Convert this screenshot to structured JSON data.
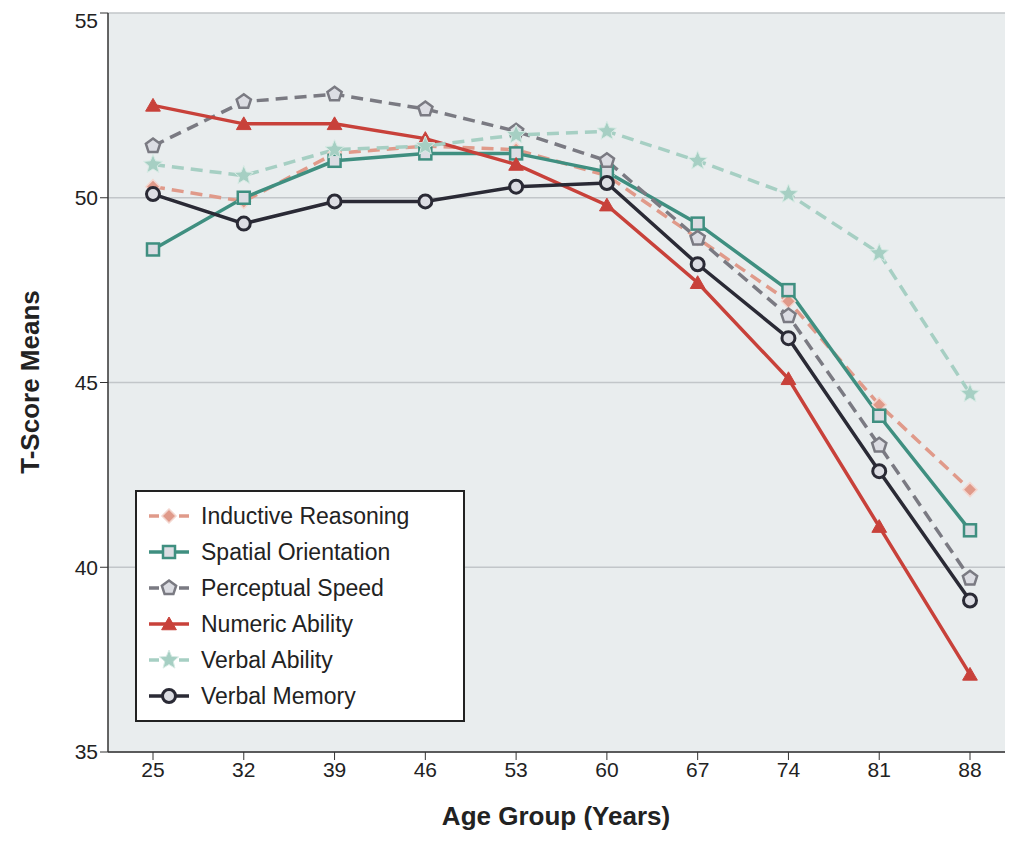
{
  "chart_data": {
    "type": "line",
    "x_label": "Age Group (Years)",
    "y_label": "T-Score Means",
    "categories": [
      25,
      32,
      39,
      46,
      53,
      60,
      67,
      74,
      81,
      88
    ],
    "ylim": [
      35,
      55
    ],
    "yticks": [
      35,
      40,
      45,
      50,
      55
    ],
    "grid": true,
    "legend": "lower left",
    "series": [
      {
        "name": "Inductive Reasoning",
        "color": "#e09a8a",
        "marker": "diamond",
        "line_style": "dashed",
        "values": [
          50.3,
          49.9,
          51.2,
          51.4,
          51.3,
          50.6,
          48.9,
          47.2,
          44.4,
          42.1
        ]
      },
      {
        "name": "Spatial Orientation",
        "color": "#3f8f80",
        "marker": "square",
        "line_style": "solid",
        "values": [
          48.6,
          50.0,
          51.0,
          51.2,
          51.2,
          50.7,
          49.3,
          47.5,
          44.1,
          41.0
        ]
      },
      {
        "name": "Perceptual Speed",
        "color": "#7a7a82",
        "marker": "pentagon",
        "line_style": "dashed",
        "values": [
          51.4,
          52.6,
          52.8,
          52.4,
          51.8,
          51.0,
          48.9,
          46.8,
          43.3,
          39.7
        ]
      },
      {
        "name": "Numeric Ability",
        "color": "#c8413a",
        "marker": "triangle",
        "line_style": "solid",
        "values": [
          52.5,
          52.0,
          52.0,
          51.6,
          50.9,
          49.8,
          47.7,
          45.1,
          41.1,
          37.1
        ]
      },
      {
        "name": "Verbal Ability",
        "color": "#a6cfc3",
        "marker": "star",
        "line_style": "dashed",
        "values": [
          50.9,
          50.6,
          51.3,
          51.4,
          51.7,
          51.8,
          51.0,
          50.1,
          48.5,
          44.7
        ]
      },
      {
        "name": "Verbal Memory",
        "color": "#2a2a35",
        "marker": "circle",
        "line_style": "solid",
        "values": [
          50.1,
          49.3,
          49.9,
          49.9,
          50.3,
          50.4,
          48.2,
          46.2,
          42.6,
          39.1
        ]
      }
    ]
  }
}
